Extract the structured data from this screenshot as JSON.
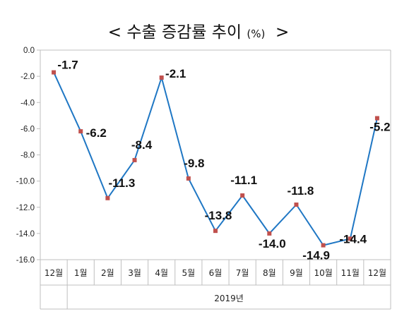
{
  "chart_data": {
    "type": "line",
    "title": "< 수출 증감률 추이",
    "title_unit": "(%)",
    "title_end": ">",
    "categories": [
      "12월",
      "1월",
      "2월",
      "3월",
      "4월",
      "5월",
      "6월",
      "7월",
      "8월",
      "9월",
      "10월",
      "11월",
      "12월"
    ],
    "group_label": "2019년",
    "series": [
      {
        "values": [
          -1.7,
          -6.2,
          -11.3,
          -8.4,
          -2.1,
          -9.8,
          -13.8,
          -11.1,
          -14.0,
          -11.8,
          -14.9,
          -14.4,
          -5.2
        ]
      }
    ],
    "data_labels": [
      "-1.7",
      "-6.2",
      "-11.3",
      "-8.4",
      "-2.1",
      "-9.8",
      "-13.8",
      "-11.1",
      "-14.0",
      "-11.8",
      "-14.9",
      "-14.4",
      "-5.2"
    ],
    "y_ticks": [
      "0.0",
      "-2.0",
      "-4.0",
      "-6.0",
      "-8.0",
      "-10.0",
      "-12.0",
      "-14.0",
      "-16.0"
    ],
    "ylim": [
      -16,
      0
    ],
    "grid": false,
    "legend": "none",
    "colors": {
      "line": "#1f77c4",
      "marker": "#c0504d",
      "axis": "#bfbfbf"
    }
  }
}
